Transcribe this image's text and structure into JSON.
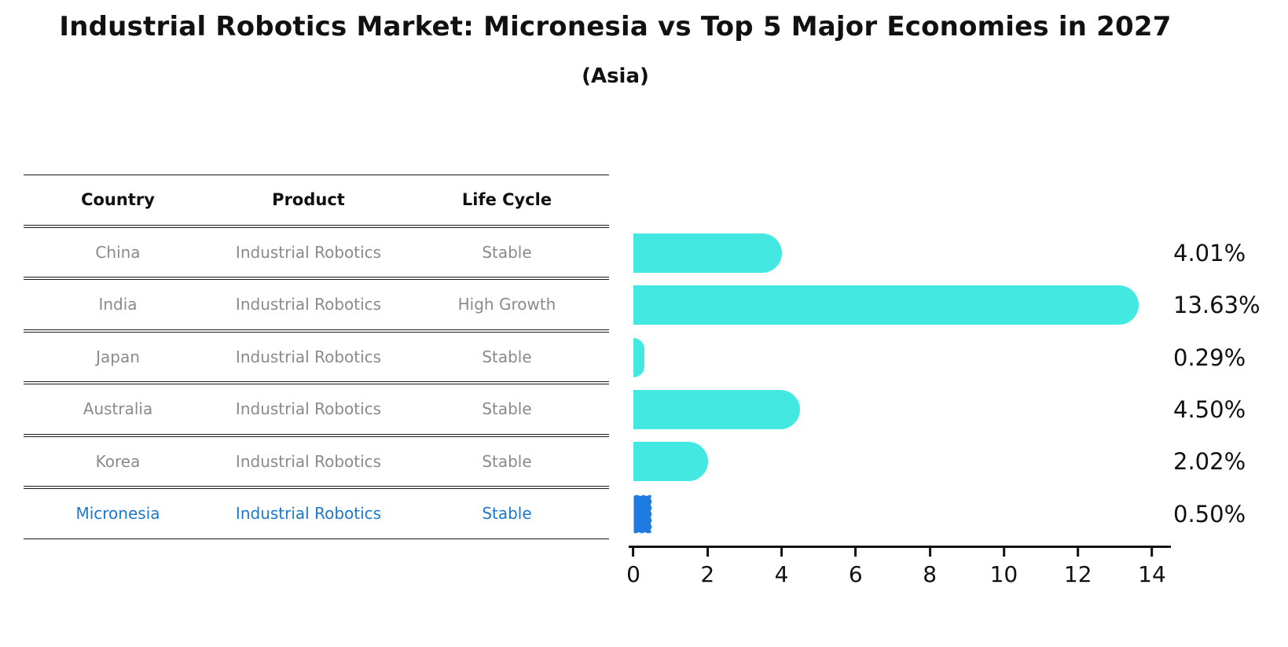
{
  "title": "Industrial Robotics Market: Micronesia vs Top 5 Major Economies in 2027",
  "subtitle": "(Asia)",
  "table": {
    "headers": [
      "Country",
      "Product",
      "Life Cycle"
    ],
    "rows": [
      [
        "China",
        "Industrial Robotics",
        "Stable"
      ],
      [
        "India",
        "Industrial Robotics",
        "High Growth"
      ],
      [
        "Japan",
        "Industrial Robotics",
        "Stable"
      ],
      [
        "Australia",
        "Industrial Robotics",
        "Stable"
      ],
      [
        "Korea",
        "Industrial Robotics",
        "Stable"
      ],
      [
        "Micronesia",
        "Industrial Robotics",
        "Stable"
      ]
    ],
    "highlight_row_index": 5
  },
  "chart_data": {
    "type": "bar",
    "orientation": "horizontal",
    "categories": [
      "China",
      "India",
      "Japan",
      "Australia",
      "Korea",
      "Micronesia"
    ],
    "values": [
      4.01,
      13.63,
      0.29,
      4.5,
      2.02,
      0.5
    ],
    "value_labels": [
      "4.01%",
      "13.63%",
      "0.29%",
      "4.50%",
      "2.02%",
      "0.50%"
    ],
    "x_ticks": [
      0,
      2,
      4,
      6,
      8,
      10,
      12,
      14
    ],
    "xlim": [
      0,
      14
    ],
    "grid": false,
    "legend": false,
    "highlight_index": 5
  },
  "colors": {
    "bar_cyan": "#43E8E0",
    "bar_blue": "#1F7BE0",
    "highlight_text": "#1E78C8",
    "cell_text": "#8A8A8A",
    "header_text": "#111111",
    "axis": "#111111"
  }
}
